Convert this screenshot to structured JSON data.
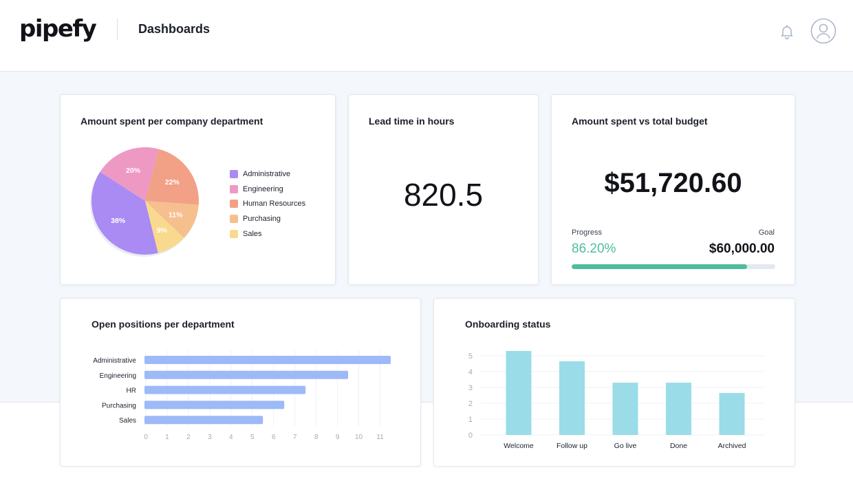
{
  "header": {
    "logo_text": "pipefy",
    "page_title": "Dashboards",
    "icons": [
      "bell-icon",
      "user-avatar-icon"
    ]
  },
  "colors": {
    "administrative": "#a98bf3",
    "engineering": "#ee99c3",
    "human_resources": "#f2a186",
    "purchasing": "#f6bf8e",
    "sales": "#f9d98e",
    "bar_blue": "#9db9f7",
    "bar_cyan": "#9adce8",
    "progress_green": "#4dbd9e"
  },
  "pie_card": {
    "title": "Amount spent per company department",
    "legend": [
      "Administrative",
      "Engineering",
      "Human Resources",
      "Purchasing",
      "Sales"
    ]
  },
  "lead_card": {
    "title": "Lead time in hours",
    "value": "820.5"
  },
  "budget_card": {
    "title": "Amount spent vs total budget",
    "amount": "$51,720.60",
    "progress_label": "Progress",
    "goal_label": "Goal",
    "progress_value": "86.20%",
    "goal_value": "$60,000.00",
    "progress_fraction": 0.862
  },
  "bar_card": {
    "title": "Open positions per department"
  },
  "onboarding_card": {
    "title": "Onboarding status"
  },
  "chart_data": [
    {
      "type": "pie",
      "title": "Amount spent per company department",
      "categories": [
        "Administrative",
        "Engineering",
        "Human Resources",
        "Purchasing",
        "Sales"
      ],
      "values": [
        38,
        20,
        22,
        11,
        9
      ],
      "labels": [
        "38%",
        "20%",
        "22%",
        "11%",
        "9%"
      ],
      "legend": "right"
    },
    {
      "type": "bar",
      "orientation": "horizontal",
      "title": "Open positions per department",
      "categories": [
        "Administrative",
        "Engineering",
        "HR",
        "Purchasing",
        "Sales"
      ],
      "values": [
        11.5,
        9.5,
        7.5,
        6.5,
        5.5
      ],
      "xlim": [
        0,
        11.5
      ],
      "xticks": [
        "0",
        "1",
        "2",
        "3",
        "4",
        "5",
        "6",
        "7",
        "8",
        "9",
        "10",
        "11"
      ],
      "grid": true
    },
    {
      "type": "bar",
      "orientation": "vertical",
      "title": "Onboarding status",
      "categories": [
        "Welcome",
        "Follow up",
        "Go live",
        "Done",
        "Archived"
      ],
      "values": [
        5.3,
        4.65,
        3.3,
        3.3,
        2.65
      ],
      "ylim": [
        0,
        5.3
      ],
      "yticks": [
        "0",
        "1",
        "2",
        "3",
        "4",
        "5"
      ],
      "grid": true
    }
  ]
}
